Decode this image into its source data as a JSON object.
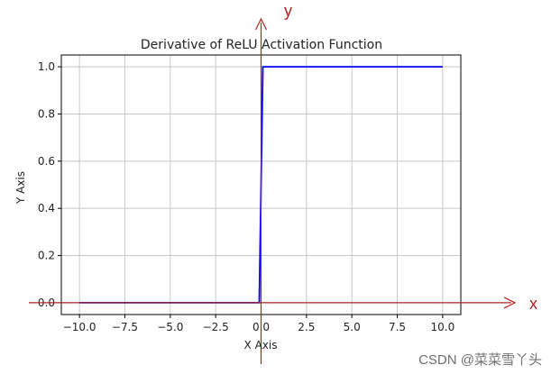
{
  "chart_data": {
    "type": "line",
    "title": "Derivative of ReLU Activation Function",
    "xlabel": "X Axis",
    "ylabel": "Y Axis",
    "xlim": [
      -11,
      11
    ],
    "ylim": [
      -0.05,
      1.05
    ],
    "grid": true,
    "x_ticks": [
      -10,
      -7.5,
      -5,
      -2.5,
      0,
      2.5,
      5,
      7.5,
      10
    ],
    "x_tick_labels": [
      "−10.0",
      "−7.5",
      "−5.0",
      "−2.5",
      "0.0",
      "2.5",
      "5.0",
      "7.5",
      "10.0"
    ],
    "y_ticks": [
      0,
      0.2,
      0.4,
      0.6,
      0.8,
      1.0
    ],
    "y_tick_labels": [
      "0.0",
      "0.2",
      "0.4",
      "0.6",
      "0.8",
      "1.0"
    ],
    "series": [
      {
        "color": "#0000ff",
        "x": [
          -10,
          -0.1,
          0.1,
          10
        ],
        "y": [
          0,
          0,
          1,
          1
        ]
      }
    ],
    "annotations": {
      "x_arrow_label": "x",
      "y_arrow_label": "y",
      "arrow_color": "#b22222"
    }
  },
  "watermark": "CSDN @菜菜雪丫头"
}
